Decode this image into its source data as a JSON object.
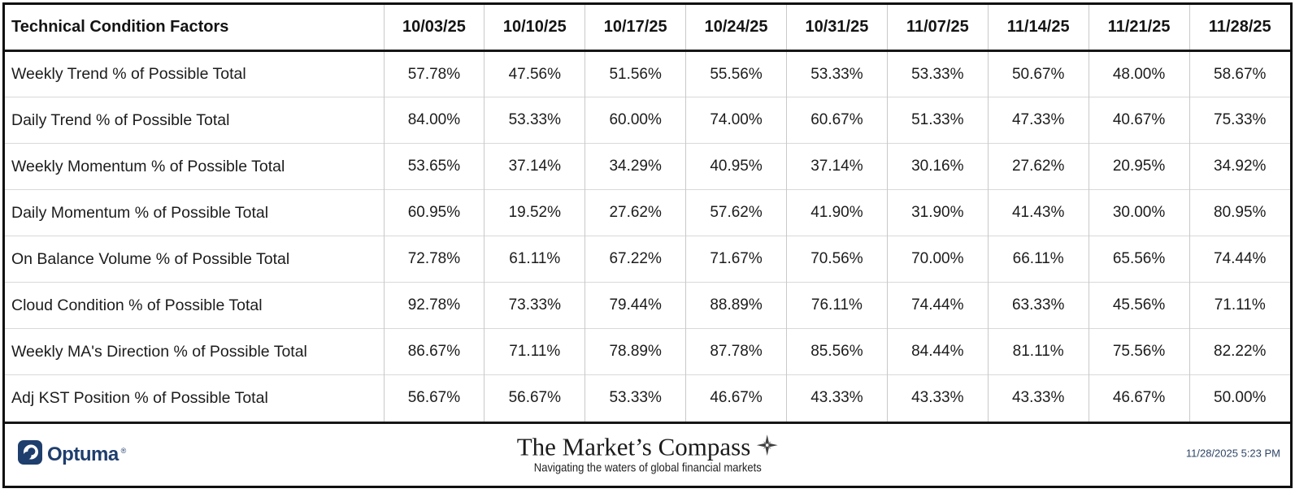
{
  "chart_data": {
    "type": "table",
    "title": "Technical Condition Factors",
    "unit": "%",
    "columns": [
      "10/03/25",
      "10/10/25",
      "10/17/25",
      "10/24/25",
      "10/31/25",
      "11/07/25",
      "11/14/25",
      "11/21/25",
      "11/28/25"
    ],
    "series": [
      {
        "name": "Weekly Trend % of Possible Total",
        "values": [
          57.78,
          47.56,
          51.56,
          55.56,
          53.33,
          53.33,
          50.67,
          48.0,
          58.67
        ]
      },
      {
        "name": "Daily Trend % of Possible Total",
        "values": [
          84.0,
          53.33,
          60.0,
          74.0,
          60.67,
          51.33,
          47.33,
          40.67,
          75.33
        ]
      },
      {
        "name": "Weekly Momentum % of Possible Total",
        "values": [
          53.65,
          37.14,
          34.29,
          40.95,
          37.14,
          30.16,
          27.62,
          20.95,
          34.92
        ]
      },
      {
        "name": "Daily Momentum % of Possible Total",
        "values": [
          60.95,
          19.52,
          27.62,
          57.62,
          41.9,
          31.9,
          41.43,
          30.0,
          80.95
        ]
      },
      {
        "name": "On Balance Volume % of Possible Total",
        "values": [
          72.78,
          61.11,
          67.22,
          71.67,
          70.56,
          70.0,
          66.11,
          65.56,
          74.44
        ]
      },
      {
        "name": "Cloud Condition % of Possible Total",
        "values": [
          92.78,
          73.33,
          79.44,
          88.89,
          76.11,
          74.44,
          63.33,
          45.56,
          71.11
        ]
      },
      {
        "name": "Weekly MA's Direction % of Possible Total",
        "values": [
          86.67,
          71.11,
          78.89,
          87.78,
          85.56,
          84.44,
          81.11,
          75.56,
          82.22
        ]
      },
      {
        "name": "Adj KST Position % of Possible Total",
        "values": [
          56.67,
          56.67,
          53.33,
          46.67,
          43.33,
          43.33,
          43.33,
          46.67,
          50.0
        ]
      }
    ]
  },
  "footer": {
    "optuma_label": "Optuma",
    "optuma_reg": "®",
    "brand_title": "The Market’s Compass",
    "brand_tagline": "Navigating the waters of global financial markets",
    "timestamp": "11/28/2025 5:23 PM"
  },
  "colors": {
    "optuma_navy": "#1e3e6d",
    "border_black": "#161616",
    "grid_line": "#c9c9c9",
    "table_text": "#1c1c1c",
    "timestamp_navy": "#2e4466",
    "compass_gray": "#4a4a4a"
  }
}
